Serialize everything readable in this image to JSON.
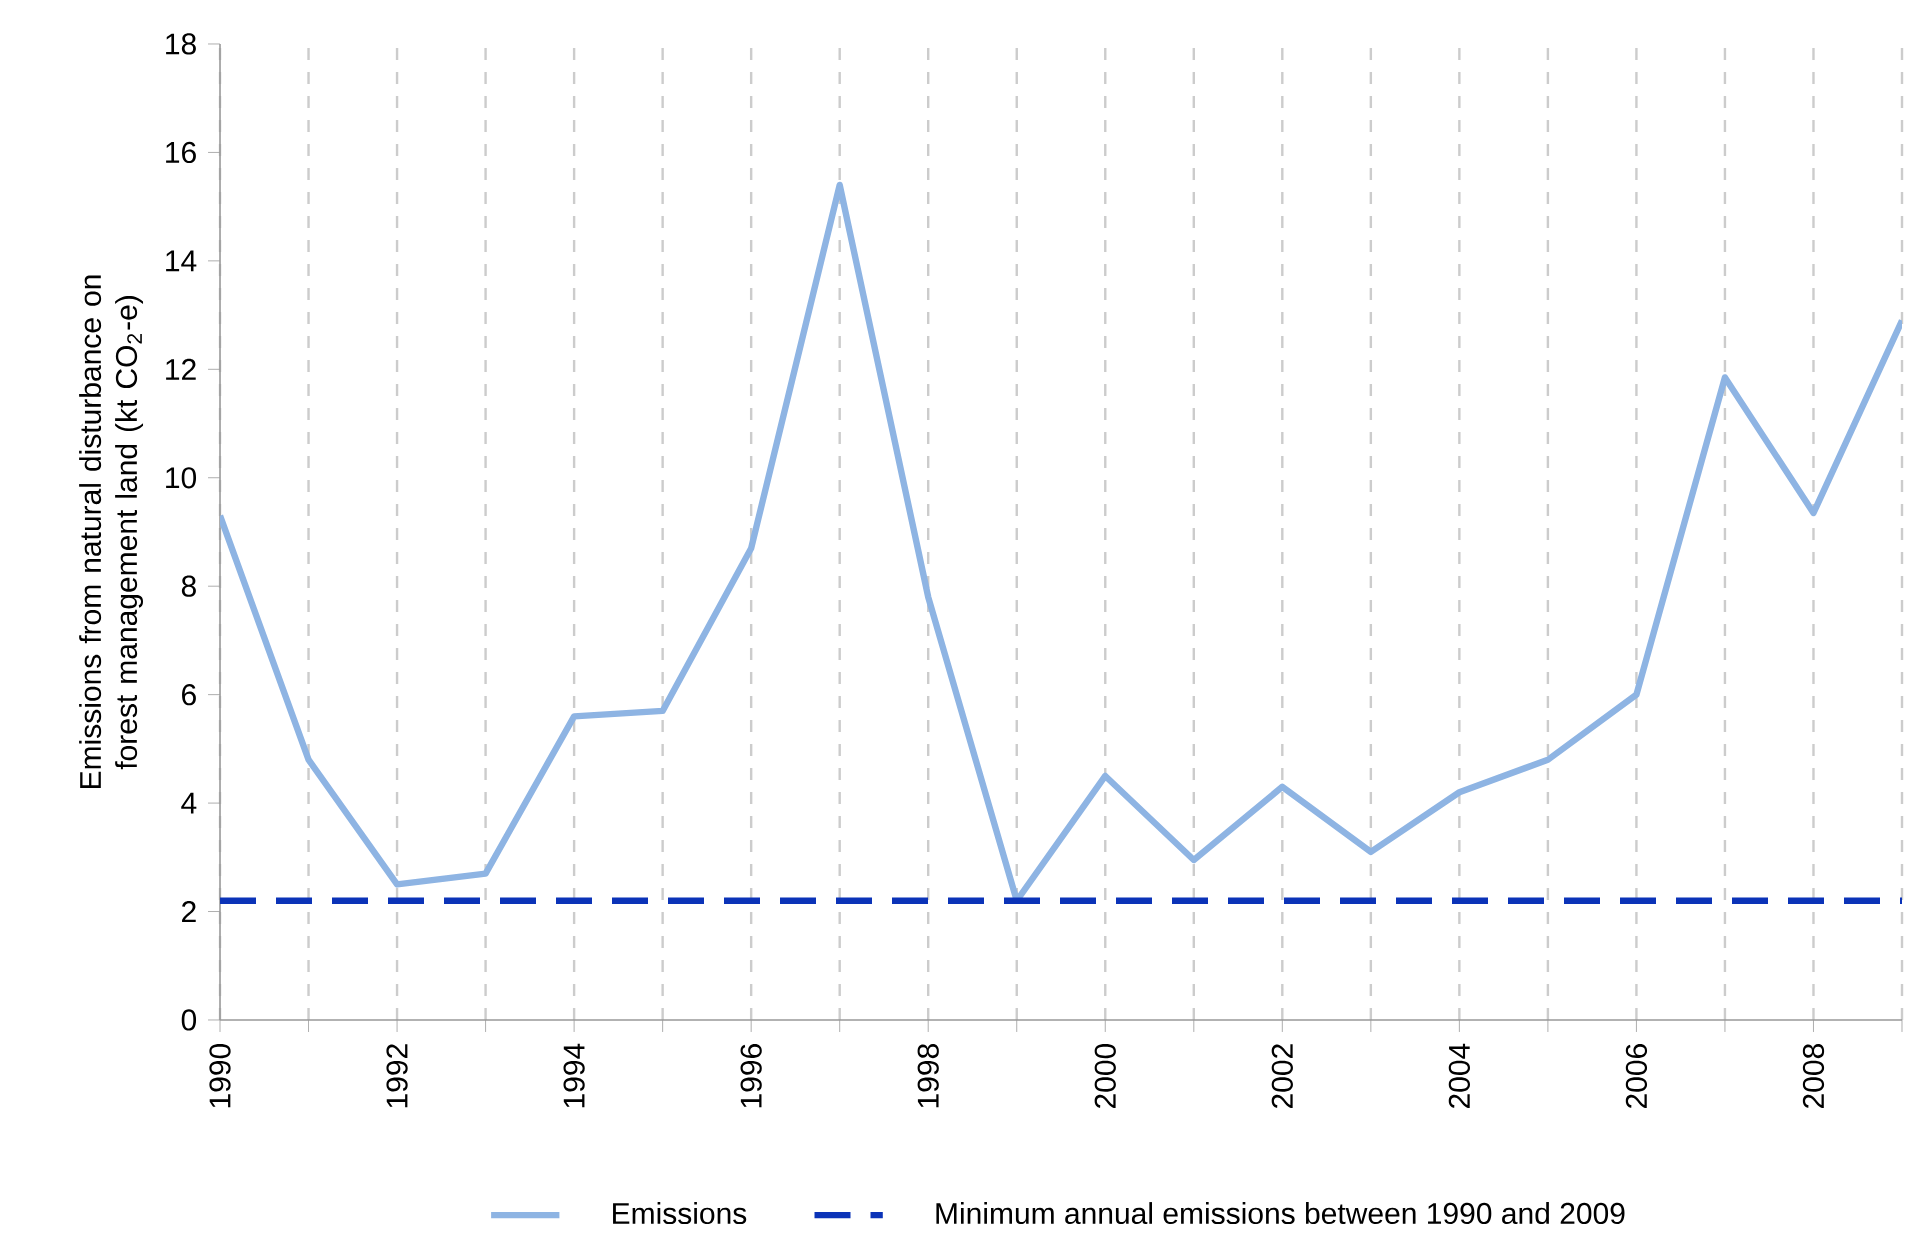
{
  "chart_data": {
    "type": "line",
    "ylabel": "Emissions from natural disturbance on forest management land (kt CO$_{2}$-e)",
    "x": [
      1990,
      1991,
      1992,
      1993,
      1994,
      1995,
      1996,
      1997,
      1998,
      1999,
      2000,
      2001,
      2002,
      2003,
      2004,
      2005,
      2006,
      2007,
      2008,
      2009
    ],
    "series": [
      {
        "name": "Emissions",
        "color": "#8eb4e3",
        "values": [
          9.3,
          4.8,
          2.5,
          2.7,
          5.6,
          5.7,
          8.7,
          15.4,
          7.8,
          2.2,
          4.5,
          2.95,
          4.3,
          3.1,
          4.2,
          4.8,
          6.0,
          11.85,
          9.35,
          12.9
        ]
      }
    ],
    "ref_lines": [
      {
        "axis": "y",
        "value": 2.2,
        "label": "Minimum annual emissions between 1990 and 2009",
        "color": "#0b33b8",
        "line_style": "dashed"
      }
    ],
    "xlim": [
      1990,
      2009
    ],
    "ylim": [
      0,
      18
    ],
    "xticks": [
      1990,
      {
        "value": 1991,
        "label": null
      },
      1992,
      {
        "value": 1993,
        "label": null
      },
      1994,
      {
        "value": 1995,
        "label": null
      },
      1996,
      {
        "value": 1997,
        "label": null
      },
      1998,
      {
        "value": 1999,
        "label": null
      },
      2000,
      {
        "value": 2001,
        "label": null
      },
      2002,
      {
        "value": 2003,
        "label": null
      },
      2004,
      {
        "value": 2005,
        "label": null
      },
      2006,
      {
        "value": 2007,
        "label": null
      },
      2008,
      {
        "value": 2009,
        "label": null
      }
    ],
    "yticks": [
      0,
      2,
      4,
      6,
      8,
      10,
      12,
      14,
      16,
      18
    ],
    "grid": "x",
    "legend": "bottom",
    "marker": "none",
    "line_style": "solid"
  }
}
